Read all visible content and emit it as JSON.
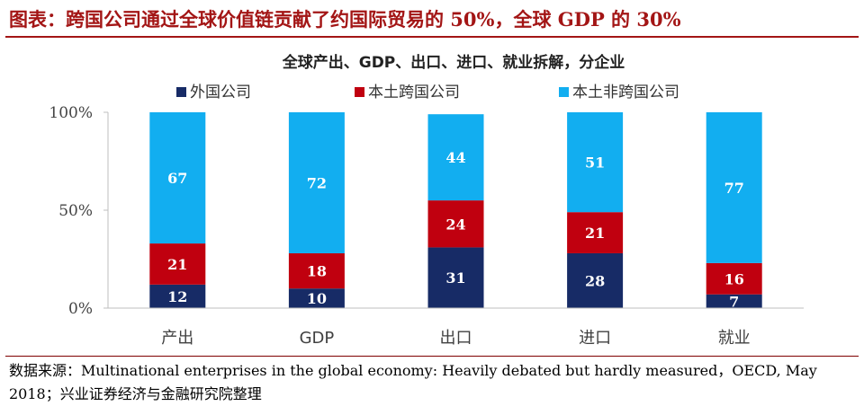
{
  "title": "图表：跨国公司通过全球价值链贡献了约国际贸易的 50%，全球 GDP 的 30%",
  "source": "数据来源：Multinational enterprises in the global economy: Heavily debated but hardly measured，OECD, May 2018；兴业证券经济与金融研究院整理",
  "colors": {
    "title": "#a31515",
    "foreign": "#172b66",
    "local_mne": "#c0000f",
    "local_non": "#12aef0"
  },
  "chart_data": {
    "type": "bar",
    "stacked": true,
    "title": "全球产出、GDP、出口、进口、就业拆解，分企业",
    "categories": [
      "产出",
      "GDP",
      "出口",
      "进口",
      "就业"
    ],
    "series": [
      {
        "name": "外国公司",
        "values": [
          12,
          10,
          31,
          28,
          7
        ]
      },
      {
        "name": "本土跨国公司",
        "values": [
          21,
          18,
          24,
          21,
          16
        ]
      },
      {
        "name": "本土非跨国公司",
        "values": [
          67,
          72,
          44,
          51,
          77
        ]
      }
    ],
    "ylim": [
      0,
      100
    ],
    "yticks": [
      "0%",
      "50%",
      "100%"
    ],
    "legend": "top",
    "grid": false
  }
}
